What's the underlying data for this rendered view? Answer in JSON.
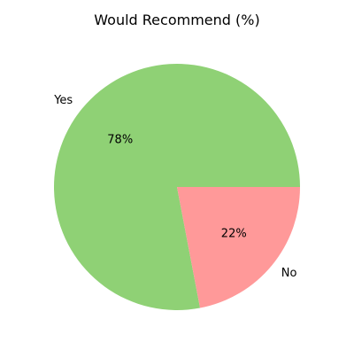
{
  "chart_data": {
    "type": "pie",
    "title": "Would Recommend (%)",
    "categories": [
      "Yes",
      "No"
    ],
    "values": [
      78,
      22
    ],
    "percent_labels": [
      "78%",
      "22%"
    ],
    "colors": [
      "#8fd175",
      "#ff9999"
    ],
    "start": "3 o'clock",
    "direction": "counterclockwise",
    "legend": "none"
  }
}
